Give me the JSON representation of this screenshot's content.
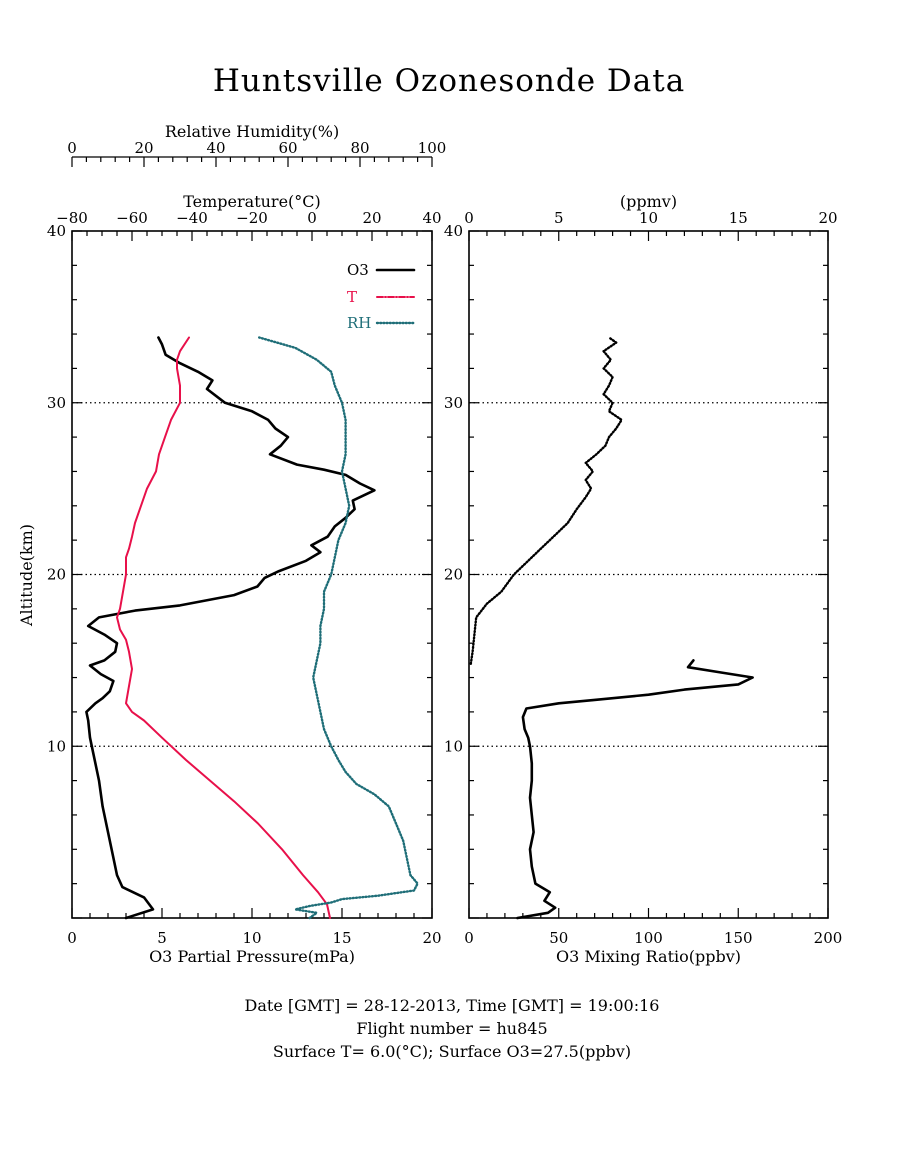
{
  "title": "Huntsville Ozonesonde Data",
  "footer": {
    "line1": "Date [GMT] = 28-12-2013,  Time [GMT] = 19:00:16",
    "line2": "Flight number = hu845",
    "line3": "Surface T= 6.0(°C); Surface O3=27.5(ppbv)"
  },
  "colors": {
    "o3": "#000000",
    "temperature": "#e8104a",
    "rh": "#1f6e78",
    "frame": "#000000"
  },
  "chart_data": [
    {
      "type": "line",
      "panel": "left",
      "ylabel": "Altitude(km)",
      "ylim": [
        0,
        40
      ],
      "yticks": [
        10,
        20,
        30,
        40
      ],
      "grid_y": [
        10,
        20,
        30
      ],
      "axes": {
        "o3_pressure": {
          "label": "O3 Partial Pressure(mPa)",
          "range": [
            0,
            20
          ],
          "ticks": [
            0,
            5,
            10,
            15,
            20
          ],
          "position": "bottom"
        },
        "temperature": {
          "label": "Temperature(°C)",
          "range": [
            -80,
            40
          ],
          "ticks": [
            -80,
            -60,
            -40,
            -20,
            0,
            20,
            40
          ],
          "position": "top-inner"
        },
        "relative_humidity": {
          "label": "Relative Humidity(%)",
          "range": [
            0,
            100
          ],
          "ticks": [
            0,
            20,
            40,
            60,
            80,
            100
          ],
          "position": "top-outer"
        }
      },
      "legend": {
        "placement": "top-right",
        "entries": [
          "O3",
          "T",
          "RH"
        ]
      },
      "series": [
        {
          "name": "O3",
          "axis": "o3_pressure",
          "points": [
            [
              3.0,
              0.0
            ],
            [
              4.5,
              0.5
            ],
            [
              4.0,
              1.2
            ],
            [
              2.8,
              1.8
            ],
            [
              2.5,
              2.5
            ],
            [
              2.3,
              3.5
            ],
            [
              2.0,
              5.0
            ],
            [
              1.7,
              6.5
            ],
            [
              1.5,
              8.0
            ],
            [
              1.2,
              9.5
            ],
            [
              1.0,
              10.5
            ],
            [
              0.9,
              11.5
            ],
            [
              0.8,
              12.0
            ],
            [
              1.3,
              12.5
            ],
            [
              1.7,
              12.8
            ],
            [
              2.1,
              13.2
            ],
            [
              2.3,
              13.8
            ],
            [
              1.6,
              14.2
            ],
            [
              1.0,
              14.7
            ],
            [
              1.8,
              15.0
            ],
            [
              2.4,
              15.5
            ],
            [
              2.5,
              16.0
            ],
            [
              1.8,
              16.5
            ],
            [
              0.9,
              17.0
            ],
            [
              1.5,
              17.5
            ],
            [
              3.5,
              17.9
            ],
            [
              6.0,
              18.2
            ],
            [
              9.0,
              18.8
            ],
            [
              10.3,
              19.3
            ],
            [
              10.7,
              19.8
            ],
            [
              11.5,
              20.2
            ],
            [
              13.0,
              20.8
            ],
            [
              13.8,
              21.3
            ],
            [
              13.3,
              21.7
            ],
            [
              14.2,
              22.2
            ],
            [
              14.6,
              22.8
            ],
            [
              15.2,
              23.3
            ],
            [
              15.7,
              23.8
            ],
            [
              15.6,
              24.3
            ],
            [
              16.8,
              24.9
            ],
            [
              16.0,
              25.3
            ],
            [
              15.2,
              25.8
            ],
            [
              14.0,
              26.1
            ],
            [
              12.5,
              26.4
            ],
            [
              11.0,
              27.0
            ],
            [
              11.6,
              27.5
            ],
            [
              12.0,
              28.0
            ],
            [
              11.3,
              28.5
            ],
            [
              10.9,
              29.0
            ],
            [
              10.0,
              29.5
            ],
            [
              8.5,
              30.0
            ],
            [
              7.5,
              30.8
            ],
            [
              7.8,
              31.3
            ],
            [
              7.0,
              31.8
            ],
            [
              6.0,
              32.3
            ],
            [
              5.2,
              32.8
            ],
            [
              5.0,
              33.4
            ],
            [
              4.8,
              33.8
            ]
          ]
        },
        {
          "name": "T",
          "axis": "temperature",
          "points": [
            [
              6.0,
              0.0
            ],
            [
              5.0,
              0.8
            ],
            [
              2.0,
              1.5
            ],
            [
              -3.0,
              2.5
            ],
            [
              -10.0,
              4.0
            ],
            [
              -18.0,
              5.5
            ],
            [
              -26.0,
              6.8
            ],
            [
              -34.0,
              8.0
            ],
            [
              -42.0,
              9.2
            ],
            [
              -50.0,
              10.5
            ],
            [
              -56.0,
              11.5
            ],
            [
              -60.0,
              12.0
            ],
            [
              -62.0,
              12.5
            ],
            [
              -61.0,
              13.5
            ],
            [
              -60.0,
              14.5
            ],
            [
              -61.0,
              15.5
            ],
            [
              -62.0,
              16.2
            ],
            [
              -64.0,
              16.8
            ],
            [
              -65.0,
              17.5
            ],
            [
              -64.0,
              18.0
            ],
            [
              -63.0,
              19.0
            ],
            [
              -62.0,
              20.0
            ],
            [
              -62.0,
              21.0
            ],
            [
              -61.0,
              21.5
            ],
            [
              -60.0,
              22.2
            ],
            [
              -59.0,
              23.0
            ],
            [
              -57.0,
              24.0
            ],
            [
              -55.0,
              25.0
            ],
            [
              -52.0,
              26.0
            ],
            [
              -51.0,
              27.0
            ],
            [
              -49.0,
              28.0
            ],
            [
              -47.0,
              29.0
            ],
            [
              -44.0,
              30.0
            ],
            [
              -44.0,
              31.0
            ],
            [
              -45.0,
              32.0
            ],
            [
              -45.0,
              32.5
            ],
            [
              -44.0,
              33.0
            ],
            [
              -41.0,
              33.8
            ]
          ]
        },
        {
          "name": "RH",
          "axis": "relative_humidity",
          "points": [
            [
              66.0,
              0.0
            ],
            [
              68.0,
              0.3
            ],
            [
              62.0,
              0.5
            ],
            [
              66.0,
              0.7
            ],
            [
              72.0,
              0.9
            ],
            [
              75.0,
              1.1
            ],
            [
              85.0,
              1.3
            ],
            [
              95.0,
              1.6
            ],
            [
              96.0,
              2.0
            ],
            [
              94.0,
              2.5
            ],
            [
              93.0,
              3.5
            ],
            [
              92.0,
              4.5
            ],
            [
              90.0,
              5.5
            ],
            [
              88.0,
              6.5
            ],
            [
              84.0,
              7.2
            ],
            [
              79.0,
              7.8
            ],
            [
              76.0,
              8.5
            ],
            [
              74.0,
              9.2
            ],
            [
              72.0,
              10.0
            ],
            [
              70.0,
              11.0
            ],
            [
              69.0,
              12.0
            ],
            [
              68.0,
              13.0
            ],
            [
              67.0,
              14.0
            ],
            [
              68.0,
              15.0
            ],
            [
              69.0,
              16.0
            ],
            [
              69.0,
              17.0
            ],
            [
              70.0,
              18.0
            ],
            [
              70.0,
              19.0
            ],
            [
              72.0,
              20.0
            ],
            [
              73.0,
              21.0
            ],
            [
              74.0,
              22.0
            ],
            [
              76.0,
              23.0
            ],
            [
              77.0,
              24.0
            ],
            [
              76.0,
              25.0
            ],
            [
              75.0,
              26.0
            ],
            [
              76.0,
              27.0
            ],
            [
              76.0,
              28.0
            ],
            [
              76.0,
              29.0
            ],
            [
              75.0,
              30.0
            ],
            [
              73.0,
              31.0
            ],
            [
              72.0,
              31.8
            ],
            [
              68.0,
              32.5
            ],
            [
              62.0,
              33.2
            ],
            [
              52.0,
              33.8
            ]
          ]
        }
      ]
    },
    {
      "type": "line",
      "panel": "right",
      "ylim": [
        0,
        40
      ],
      "yticks": [
        10,
        20,
        30,
        40
      ],
      "grid_y": [
        10,
        20,
        30
      ],
      "axes": {
        "mixing_ratio_ppbv": {
          "label": "O3 Mixing Ratio(ppbv)",
          "range": [
            0,
            200
          ],
          "ticks": [
            0,
            50,
            100,
            150,
            200
          ],
          "position": "bottom"
        },
        "mixing_ratio_ppmv": {
          "label": "(ppmv)",
          "range": [
            0,
            20
          ],
          "ticks": [
            0,
            5,
            10,
            15,
            20
          ],
          "position": "top"
        }
      },
      "series": [
        {
          "name": "O3",
          "axis": "mixing_ratio_ppbv",
          "points": [
            [
              27.0,
              0.0
            ],
            [
              44.0,
              0.3
            ],
            [
              48.0,
              0.6
            ],
            [
              42.0,
              1.0
            ],
            [
              45.0,
              1.5
            ],
            [
              37.0,
              2.0
            ],
            [
              35.0,
              3.0
            ],
            [
              34.0,
              4.0
            ],
            [
              36.0,
              5.0
            ],
            [
              35.0,
              6.0
            ],
            [
              34.0,
              7.0
            ],
            [
              35.0,
              8.0
            ],
            [
              35.0,
              9.0
            ],
            [
              34.0,
              10.0
            ],
            [
              33.0,
              10.5
            ],
            [
              31.0,
              11.0
            ],
            [
              30.0,
              11.7
            ],
            [
              32.0,
              12.2
            ],
            [
              50.0,
              12.5
            ],
            [
              70.0,
              12.7
            ],
            [
              100.0,
              13.0
            ],
            [
              120.0,
              13.3
            ],
            [
              150.0,
              13.6
            ],
            [
              158.0,
              14.0
            ],
            [
              140.0,
              14.3
            ],
            [
              122.0,
              14.6
            ],
            [
              125.0,
              15.0
            ]
          ]
        },
        {
          "name": "O3",
          "axis": "mixing_ratio_ppmv",
          "points": [
            [
              0.1,
              14.8
            ],
            [
              0.2,
              15.5
            ],
            [
              0.3,
              16.5
            ],
            [
              0.4,
              17.5
            ],
            [
              1.0,
              18.3
            ],
            [
              1.8,
              19.0
            ],
            [
              2.5,
              20.0
            ],
            [
              3.3,
              20.8
            ],
            [
              4.0,
              21.5
            ],
            [
              4.8,
              22.3
            ],
            [
              5.5,
              23.0
            ],
            [
              6.0,
              23.8
            ],
            [
              6.5,
              24.5
            ],
            [
              6.8,
              25.0
            ],
            [
              6.5,
              25.5
            ],
            [
              6.9,
              26.0
            ],
            [
              6.5,
              26.5
            ],
            [
              7.1,
              27.0
            ],
            [
              7.6,
              27.5
            ],
            [
              7.8,
              28.0
            ],
            [
              8.2,
              28.5
            ],
            [
              8.5,
              29.0
            ],
            [
              7.8,
              29.5
            ],
            [
              8.0,
              30.0
            ],
            [
              7.5,
              30.5
            ],
            [
              7.8,
              31.0
            ],
            [
              8.0,
              31.5
            ],
            [
              7.5,
              32.0
            ],
            [
              7.9,
              32.5
            ],
            [
              7.5,
              33.0
            ],
            [
              8.2,
              33.5
            ],
            [
              7.8,
              33.8
            ]
          ]
        }
      ]
    }
  ]
}
